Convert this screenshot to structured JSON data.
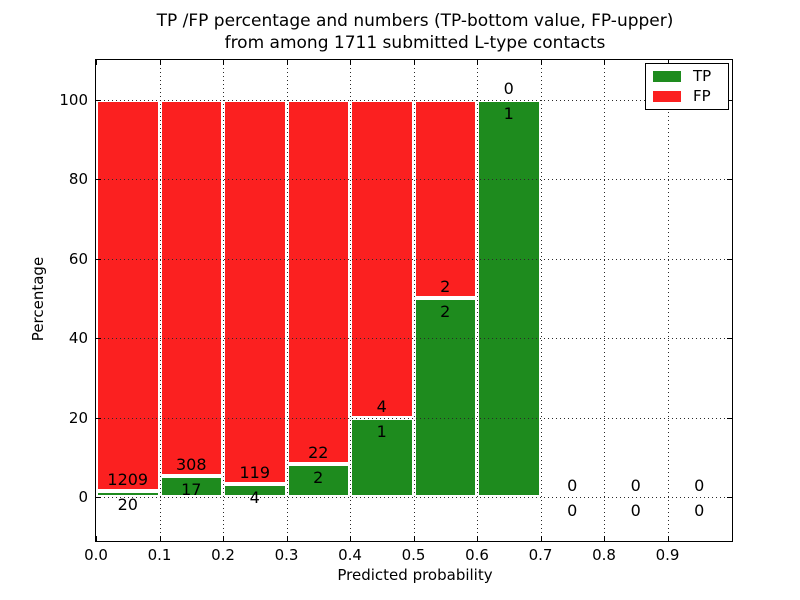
{
  "figure": {
    "title_line1": "TP /FP percentage and numbers (TP-bottom value, FP-upper)",
    "title_line2": "from among 1711 submitted L-type contacts",
    "xlabel": "Predicted probability",
    "ylabel": "Percentage"
  },
  "legend": {
    "items": [
      {
        "label": "TP",
        "color": "#1e8b1e"
      },
      {
        "label": "FP",
        "color": "#fb2020"
      }
    ]
  },
  "colors": {
    "tp": "#1e8b1e",
    "fp": "#fb2020",
    "bar_edge": "#ffffff",
    "grid": "#2a2a2a",
    "spine": "#000000",
    "background": "#ffffff",
    "text": "#000000"
  },
  "chart_data": {
    "type": "bar",
    "stacked": true,
    "normalized_to_percent": true,
    "title": "TP /FP percentage and numbers (TP-bottom value, FP-upper) from among 1711 submitted L-type contacts",
    "xlabel": "Predicted probability",
    "ylabel": "Percentage",
    "bin_edges": [
      0.0,
      0.1,
      0.2,
      0.3,
      0.4,
      0.5,
      0.6,
      0.7,
      0.8,
      0.9,
      1.0
    ],
    "series": [
      {
        "name": "TP",
        "color": "#1e8b1e",
        "counts": [
          20,
          17,
          4,
          2,
          1,
          2,
          1,
          0,
          0,
          0
        ]
      },
      {
        "name": "FP",
        "color": "#fb2020",
        "counts": [
          1209,
          308,
          119,
          22,
          4,
          2,
          0,
          0,
          0,
          0
        ]
      }
    ],
    "tp_percent_heights": [
      1.6,
      5.2,
      3.3,
      8.3,
      20.0,
      50.0,
      100.0,
      0,
      0,
      0
    ],
    "fp_percent_heights": [
      98.4,
      94.8,
      96.7,
      91.7,
      80.0,
      50.0,
      0.0,
      0,
      0,
      0
    ],
    "yticks": [
      0,
      20,
      40,
      60,
      80,
      100
    ],
    "ytick_labels": [
      "0",
      "20",
      "40",
      "60",
      "80",
      "100"
    ],
    "xticks": [
      0.0,
      0.1,
      0.2,
      0.3,
      0.4,
      0.5,
      0.6,
      0.7,
      0.8,
      0.9
    ],
    "xtick_labels": [
      "0.0",
      "0.1",
      "0.2",
      "0.3",
      "0.4",
      "0.5",
      "0.6",
      "0.7",
      "0.8",
      "0.9"
    ],
    "xlim": [
      0.0,
      1.0
    ],
    "ylim": [
      -10.8,
      110.2
    ],
    "grid": true,
    "grid_style": "dotted",
    "legend_position": "upper right"
  }
}
